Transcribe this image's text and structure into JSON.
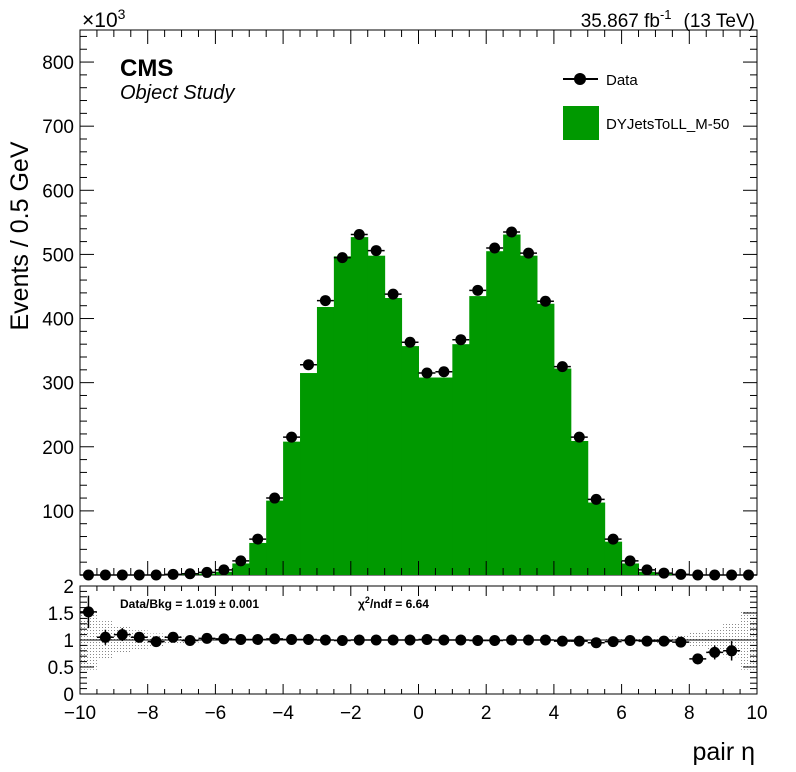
{
  "header": {
    "experiment": "CMS",
    "subtitle": "Object Study",
    "lumi_text": "35.867 fb",
    "lumi_unit_sup": "-1",
    "energy": "(13 TeV)",
    "exponent_base": "×10",
    "exponent_power": "3"
  },
  "legend": {
    "data_label": "Data",
    "mc_label": "DYJetsToLL_M-50",
    "placement": "top-right"
  },
  "ratio_panel": {
    "data_bkg_text": "Data/Bkg = 1.019  ± 0.001",
    "chi2_symbol": "χ",
    "chi2_sup": "2",
    "chi2_text": "/ndf = 6.64"
  },
  "colors": {
    "mc_fill": "#009900",
    "data_marker": "#000000",
    "uncertainty_band": "#888888"
  },
  "chart_data": [
    {
      "type": "bar",
      "panel": "main",
      "xlabel": "pair η",
      "ylabel": "Events / 0.5 GeV",
      "y_scale_note": "×10^3",
      "xlim": [
        -10,
        10
      ],
      "ylim": [
        0,
        850
      ],
      "x_ticks": [
        "−10",
        "−8",
        "−6",
        "−4",
        "−2",
        "0",
        "2",
        "4",
        "6",
        "8",
        "10"
      ],
      "y_ticks": [
        "100",
        "200",
        "300",
        "400",
        "500",
        "600",
        "700",
        "800"
      ],
      "bin_edges_start": -10,
      "bin_width": 0.5,
      "series": [
        {
          "name": "DYJetsToLL_M-50",
          "kind": "filled-histogram",
          "values": [
            0,
            0,
            0,
            0,
            0,
            0,
            1,
            2,
            5,
            18,
            50,
            116,
            208,
            315,
            418,
            497,
            527,
            498,
            432,
            357,
            308,
            308,
            360,
            435,
            505,
            531,
            498,
            423,
            322,
            209,
            113,
            52,
            18,
            5,
            2,
            1,
            0,
            0,
            0,
            0
          ]
        },
        {
          "name": "Data",
          "kind": "points",
          "values": [
            0,
            0,
            0,
            0,
            0,
            1,
            2,
            4,
            8,
            22,
            56,
            120,
            215,
            328,
            428,
            495,
            531,
            506,
            438,
            363,
            315,
            317,
            367,
            444,
            510,
            535,
            502,
            427,
            325,
            215,
            118,
            56,
            22,
            8,
            3,
            1,
            0,
            0,
            0,
            0
          ],
          "errors": [
            0.3,
            0.3,
            0.3,
            0.3,
            0.3,
            0.3,
            0.4,
            0.5,
            0.5,
            0.6,
            0.8,
            1.0,
            1.5,
            2.0,
            2.5,
            2.5,
            3.0,
            2.5,
            2.5,
            2.0,
            2.0,
            2.0,
            2.0,
            2.5,
            2.5,
            3.0,
            2.5,
            2.5,
            2.0,
            1.5,
            1.0,
            0.8,
            0.6,
            0.5,
            0.4,
            0.3,
            0.3,
            0.3,
            0.3,
            0.3
          ]
        }
      ]
    },
    {
      "type": "scatter",
      "panel": "ratio",
      "xlabel": "pair η",
      "ylabel": "",
      "xlim": [
        -10,
        10
      ],
      "ylim": [
        0,
        2
      ],
      "y_ticks": [
        "0",
        "0.5",
        "1",
        "1.5",
        "2"
      ],
      "reference_line": 1,
      "series": [
        {
          "name": "Data/Bkg",
          "values": [
            1.52,
            1.05,
            1.1,
            1.05,
            0.97,
            1.05,
            0.99,
            1.03,
            1.02,
            1.01,
            1.01,
            1.02,
            1.01,
            1.01,
            1.0,
            0.99,
            1.0,
            1.0,
            1.0,
            1.0,
            1.01,
            1.0,
            1.0,
            0.99,
            0.99,
            1.0,
            1.0,
            1.0,
            0.98,
            0.98,
            0.95,
            0.97,
            0.99,
            0.98,
            0.98,
            0.96,
            0.65,
            0.77,
            0.8,
            null
          ],
          "errors": [
            0.3,
            0.14,
            0.12,
            0.08,
            0.06,
            0.05,
            0.04,
            0.03,
            0.02,
            0.02,
            0.01,
            0.01,
            0.01,
            0.01,
            0.01,
            0.01,
            0.01,
            0.01,
            0.01,
            0.01,
            0.01,
            0.01,
            0.01,
            0.01,
            0.01,
            0.01,
            0.01,
            0.01,
            0.01,
            0.01,
            0.02,
            0.03,
            0.04,
            0.05,
            0.06,
            0.08,
            0.1,
            0.13,
            0.18,
            0
          ]
        }
      ],
      "uncertainty_band_halfwidth": [
        0.55,
        0.35,
        0.25,
        0.18,
        0.12,
        0.08,
        0.06,
        0.04,
        0.03,
        0.02,
        0.01,
        0.01,
        0.01,
        0.01,
        0.01,
        0.01,
        0.01,
        0.01,
        0.01,
        0.01,
        0.01,
        0.01,
        0.01,
        0.01,
        0.01,
        0.01,
        0.01,
        0.01,
        0.01,
        0.01,
        0.01,
        0.02,
        0.03,
        0.04,
        0.06,
        0.09,
        0.14,
        0.22,
        0.32,
        0.55
      ]
    }
  ]
}
